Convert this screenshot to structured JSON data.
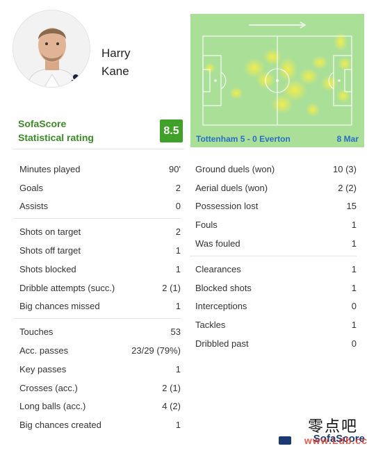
{
  "player": {
    "first_name": "Harry",
    "last_name": "Kane",
    "rating_label_line1": "SofaScore",
    "rating_label_line2": "Statistical rating",
    "rating": "8.5"
  },
  "match": {
    "score_text": "Tottenham 5 - 0 Everton",
    "date": "8 Mar",
    "direction_icon": "arrow-right-icon"
  },
  "stats_left": [
    [
      {
        "label": "Minutes played",
        "value": "90'"
      },
      {
        "label": "Goals",
        "value": "2"
      },
      {
        "label": "Assists",
        "value": "0"
      }
    ],
    [
      {
        "label": "Shots on target",
        "value": "2"
      },
      {
        "label": "Shots off target",
        "value": "1"
      },
      {
        "label": "Shots blocked",
        "value": "1"
      },
      {
        "label": "Dribble attempts (succ.)",
        "value": "2 (1)"
      },
      {
        "label": "Big chances missed",
        "value": "1"
      }
    ],
    [
      {
        "label": "Touches",
        "value": "53"
      },
      {
        "label": "Acc. passes",
        "value": "23/29 (79%)"
      },
      {
        "label": "Key passes",
        "value": "1"
      },
      {
        "label": "Crosses (acc.)",
        "value": "2 (1)"
      },
      {
        "label": "Long balls (acc.)",
        "value": "4 (2)"
      },
      {
        "label": "Big chances created",
        "value": "1"
      }
    ]
  ],
  "stats_right": [
    [
      {
        "label": "Ground duels (won)",
        "value": "10 (3)"
      },
      {
        "label": "Aerial duels (won)",
        "value": "2 (2)"
      },
      {
        "label": "Possession lost",
        "value": "15"
      },
      {
        "label": "Fouls",
        "value": "1"
      },
      {
        "label": "Was fouled",
        "value": "1"
      }
    ],
    [
      {
        "label": "Clearances",
        "value": "1"
      },
      {
        "label": "Blocked shots",
        "value": "1"
      },
      {
        "label": "Interceptions",
        "value": "0"
      },
      {
        "label": "Tackles",
        "value": "1"
      },
      {
        "label": "Dribbled past",
        "value": "0"
      }
    ]
  ],
  "watermark": {
    "chinese": "零点吧",
    "brand": "SofaScore",
    "url": "www.Ldb.cc"
  },
  "colors": {
    "rating_green": "#3fa128",
    "label_green": "#3a8a26",
    "pitch": "#aadf98",
    "heat": "#f4ee4a",
    "link_blue": "#2a6dc2"
  }
}
